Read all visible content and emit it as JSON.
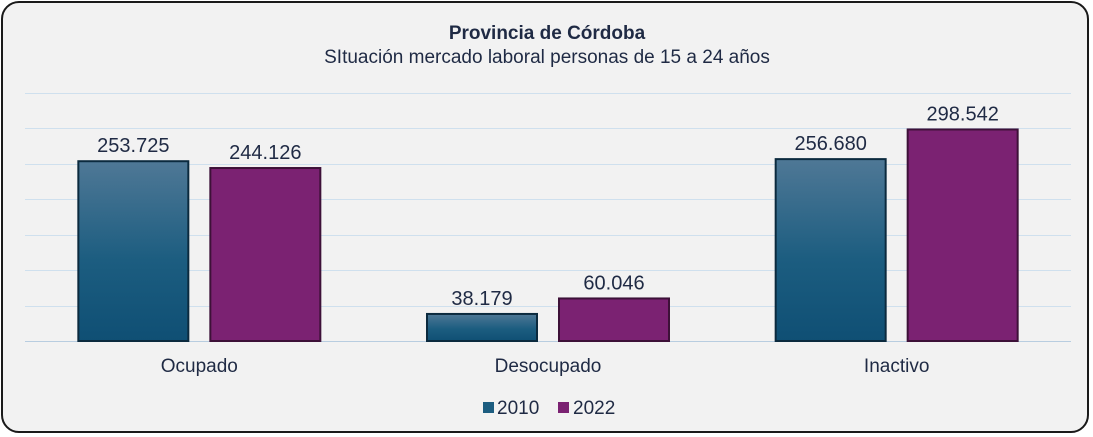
{
  "chart_data": {
    "type": "bar",
    "title": "Provincia de Córdoba",
    "subtitle": "SItuación mercado laboral personas de 15 a 24 años",
    "categories": [
      "Ocupado",
      "Desocupado",
      "Inactivo"
    ],
    "series": [
      {
        "name": "2010",
        "values": [
          253725,
          38179,
          256680
        ],
        "labels": [
          "253.725",
          "38.179",
          "256.680"
        ],
        "color": "#1c5d80"
      },
      {
        "name": "2022",
        "values": [
          244126,
          60046,
          298542
        ],
        "labels": [
          "244.126",
          "60.046",
          "298.542"
        ],
        "color": "#7b2272"
      }
    ],
    "ylim": [
      0,
      350000
    ],
    "grid": true,
    "legend_position": "bottom"
  }
}
